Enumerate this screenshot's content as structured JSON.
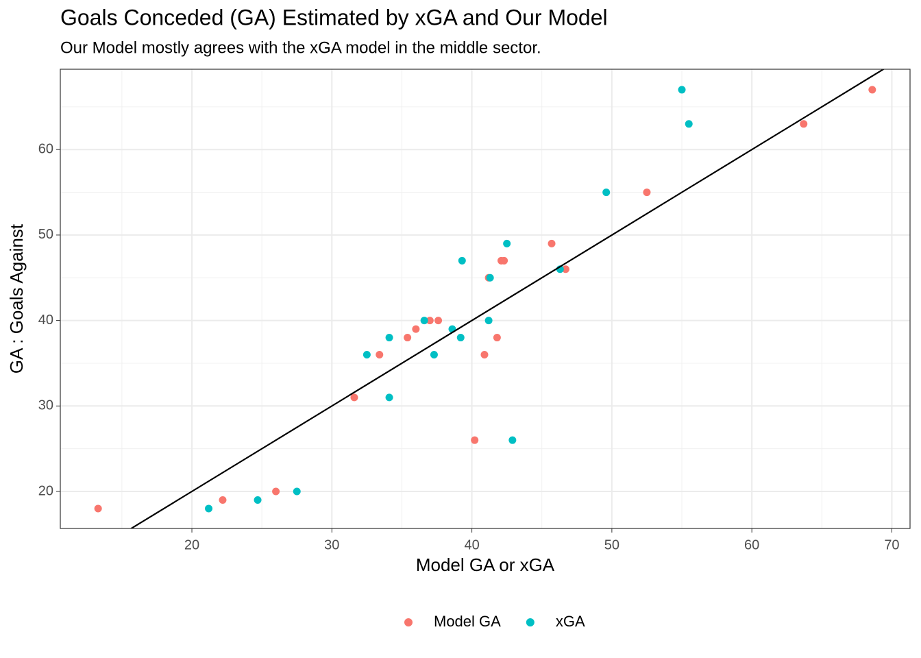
{
  "chart_data": {
    "type": "scatter",
    "title": "Goals Conceded (GA) Estimated by xGA and Our Model",
    "subtitle": "Our Model mostly agrees with the xGA model in the middle sector.",
    "x_label": "Model GA or xGA",
    "y_label": "GA : Goals Against",
    "xlim": [
      10.6,
      71.3
    ],
    "ylim": [
      15.67,
      69.4
    ],
    "xticks": [
      20,
      30,
      40,
      50,
      60,
      70
    ],
    "yticks": [
      20,
      30,
      40,
      50,
      60
    ],
    "minor_xticks": [
      15,
      25,
      35,
      45,
      55,
      65
    ],
    "minor_yticks": [
      25,
      35,
      45,
      55,
      65
    ],
    "grid": true,
    "legend": "bottom",
    "abline": {
      "slope": 1,
      "intercept": 0
    },
    "series": [
      {
        "name": "Model GA",
        "color": "#F8766D",
        "x": [
          13.3,
          22.2,
          26.0,
          31.6,
          33.4,
          35.4,
          36.0,
          37.0,
          37.6,
          40.2,
          40.9,
          41.8,
          41.2,
          42.1,
          42.3,
          45.7,
          46.7,
          52.5,
          63.7,
          68.6
        ],
        "values": [
          18,
          19,
          20,
          31,
          36,
          38,
          39,
          40,
          40,
          26,
          36,
          38,
          45,
          47,
          47,
          49,
          46,
          55,
          63,
          67
        ]
      },
      {
        "name": "xGA",
        "color": "#00BFC4",
        "x": [
          21.2,
          24.7,
          27.5,
          32.5,
          34.1,
          34.1,
          36.6,
          37.3,
          38.6,
          39.2,
          39.3,
          41.2,
          41.3,
          42.5,
          42.9,
          46.3,
          49.6,
          55.0,
          55.5
        ],
        "values": [
          18,
          19,
          20,
          36,
          38,
          31,
          40,
          36,
          39,
          38,
          47,
          40,
          45,
          49,
          26,
          46,
          55,
          67,
          63
        ]
      }
    ]
  }
}
